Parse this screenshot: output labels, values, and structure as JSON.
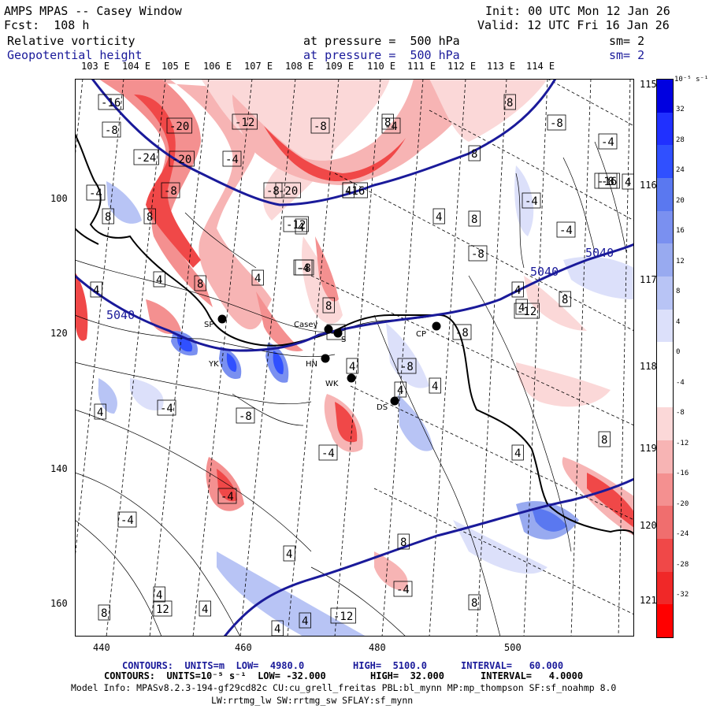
{
  "header": {
    "model": "AMPS MPAS -- Casey Window",
    "init": "Init: 00 UTC Mon 12 Jan 26",
    "fcst": "Fcst:  108 h",
    "valid": "Valid: 12 UTC Fri 16 Jan 26",
    "field1": "Relative vorticity",
    "field1_level": "at pressure =  500 hPa",
    "field1_sm": "sm= 2",
    "field2": "Geopotential height",
    "field2_level": "at pressure =  500 hPa",
    "field2_sm": "sm= 2"
  },
  "axes": {
    "top_lon_labels": [
      "103 E",
      "104 E",
      "105 E",
      "106 E",
      "107 E",
      "108 E",
      "109 E",
      "110 E",
      "111 E",
      "112 E",
      "113 E",
      "114 E"
    ],
    "right_lon_labels": [
      "115 E",
      "116 E",
      "117 E",
      "118 E",
      "119 E",
      "120 E",
      "121 E"
    ],
    "y_ticks": [
      "100",
      "120",
      "140",
      "160"
    ],
    "x_ticks": [
      "440",
      "460",
      "480",
      "500"
    ]
  },
  "colorbar": {
    "units": "10⁻⁵ s⁻¹",
    "levels": [
      "32",
      "28",
      "24",
      "20",
      "16",
      "12",
      "8",
      "4",
      "0",
      "-4",
      "-8",
      "-12",
      "-16",
      "-20",
      "-24",
      "-28",
      "-32"
    ],
    "colors": [
      "#0000e0",
      "#2030ff",
      "#3050ff",
      "#5a78f0",
      "#7a90f0",
      "#98aaf0",
      "#b8c4f5",
      "#dce0fa",
      "#ffffff",
      "#ffffff",
      "#fbd8d8",
      "#f7b4b4",
      "#f49090",
      "#f06e6e",
      "#f04848",
      "#f02828",
      "#ff0000"
    ]
  },
  "stations": [
    {
      "code": "SP"
    },
    {
      "code": "Casey"
    },
    {
      "code": "S"
    },
    {
      "code": "HN"
    },
    {
      "code": "WK"
    },
    {
      "code": "CP"
    },
    {
      "code": "DS"
    },
    {
      "code": "YK"
    }
  ],
  "height_labels": [
    "5040",
    "5040",
    "5040"
  ],
  "vort_labels": [
    "-16",
    "-8",
    "-20",
    "-24",
    "-20",
    "-12",
    "-4",
    "-8",
    "-8",
    "-20",
    "-16",
    "-8",
    "-4",
    "-12",
    "-4",
    "4",
    "8",
    "4",
    "8",
    "-8",
    "8",
    "-4",
    "-16",
    "4",
    "-4",
    "4",
    "8",
    "-4",
    "-8",
    "-8",
    "4",
    "-4",
    "8",
    "8",
    "4",
    "8",
    "4",
    "-8",
    "8",
    "-4",
    "4",
    "-8",
    "4",
    "4",
    "-8",
    "-12",
    "4",
    "-4",
    "4",
    "-8",
    "-4",
    "8",
    "4",
    "4",
    "-4",
    "4",
    "4",
    "8",
    "8",
    "8",
    "12",
    "4",
    "4",
    "-12",
    "-4",
    "4",
    "-4",
    "8"
  ],
  "footer": {
    "line1_a": "CONTOURS:  UNITS=m  LOW=  4980.0",
    "line1_b": "HIGH=  5100.0",
    "line1_c": "INTERVAL=   60.000",
    "line2_a": "CONTOURS:  UNITS=10⁻⁵ s⁻¹  LOW= -32.000",
    "line2_b": "HIGH=  32.000",
    "line2_c": "INTERVAL=   4.0000",
    "line3": "Model Info: MPASv8.2.3-194-gf29cd82c CU:cu_grell_freitas PBL:bl_mynn MP:mp_thompson SF:sf_noahmp 8.0",
    "line4": "LW:rrtmg_lw SW:rrtmg_sw SFLAY:sf_mynn"
  }
}
